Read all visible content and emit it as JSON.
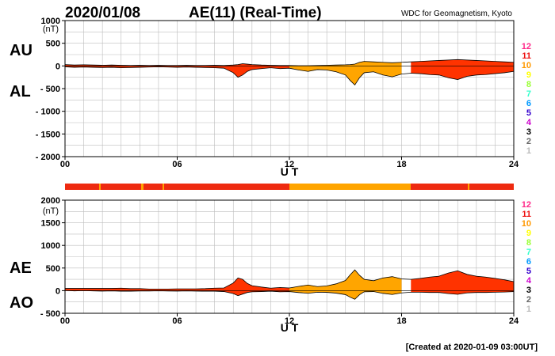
{
  "header": {
    "date": "2020/01/08",
    "title": "AE(11) (Real-Time)",
    "institution": "WDC for Geomagnetism, Kyoto"
  },
  "footer": {
    "created": "[Created at 2020-01-09 03:00UT]"
  },
  "colors": {
    "fill_red": "#ff3300",
    "fill_orange": "#ffa500",
    "outline": "#000000",
    "grid": "#bdbdbd"
  },
  "station_legend": [
    {
      "label": "12",
      "color": "#ff2a8a"
    },
    {
      "label": "11",
      "color": "#ee1111"
    },
    {
      "label": "10",
      "color": "#ff9900"
    },
    {
      "label": "9",
      "color": "#ffff00"
    },
    {
      "label": "8",
      "color": "#99ff33"
    },
    {
      "label": "7",
      "color": "#33ffcc"
    },
    {
      "label": "6",
      "color": "#0099ff"
    },
    {
      "label": "5",
      "color": "#3300cc"
    },
    {
      "label": "4",
      "color": "#cc00cc"
    },
    {
      "label": "3",
      "color": "#000000"
    },
    {
      "label": "2",
      "color": "#666666"
    },
    {
      "label": "1",
      "color": "#bbbbbb"
    }
  ],
  "chart_data": [
    {
      "type": "area",
      "panel": "AU/AL",
      "left_labels": [
        "AU",
        "AL"
      ],
      "unit_label": "(nT)",
      "xlabel": "U T",
      "xlim": [
        0,
        24
      ],
      "ylim": [
        -2000,
        1000
      ],
      "x_ticks": [
        0,
        6,
        12,
        18,
        24
      ],
      "x_tick_labels": [
        "00",
        "06",
        "12",
        "18",
        "24"
      ],
      "y_ticks": [
        1000,
        500,
        0,
        -500,
        -1000,
        -1500,
        -2000
      ],
      "y_tick_labels": [
        "1000",
        "500",
        "0",
        "- 500",
        "- 1000",
        "- 1500",
        "- 2000"
      ],
      "x": [
        0,
        0.5,
        1,
        1.5,
        2,
        2.5,
        3,
        3.5,
        4,
        4.5,
        5,
        5.5,
        6,
        6.5,
        7,
        7.5,
        8,
        8.5,
        9,
        9.25,
        9.5,
        9.75,
        10,
        10.5,
        11,
        11.5,
        12,
        12.5,
        13,
        13.5,
        14,
        14.5,
        15,
        15.25,
        15.5,
        15.75,
        16,
        16.5,
        17,
        17.5,
        18,
        18.5,
        19,
        19.5,
        20,
        20.5,
        21,
        21.5,
        22,
        22.5,
        23,
        23.5,
        24
      ],
      "series": [
        {
          "name": "AU",
          "values": [
            30,
            20,
            25,
            20,
            15,
            20,
            15,
            10,
            15,
            10,
            15,
            10,
            10,
            15,
            10,
            10,
            15,
            10,
            20,
            30,
            50,
            40,
            30,
            20,
            15,
            10,
            10,
            5,
            5,
            10,
            15,
            20,
            25,
            30,
            40,
            80,
            100,
            90,
            80,
            70,
            80,
            90,
            100,
            110,
            120,
            130,
            140,
            130,
            120,
            110,
            100,
            90,
            80
          ]
        },
        {
          "name": "AL",
          "values": [
            -20,
            -30,
            -25,
            -30,
            -35,
            -30,
            -40,
            -35,
            -30,
            -25,
            -20,
            -25,
            -30,
            -25,
            -30,
            -35,
            -40,
            -50,
            -150,
            -250,
            -200,
            -120,
            -80,
            -60,
            -40,
            -60,
            -50,
            -90,
            -120,
            -80,
            -90,
            -130,
            -200,
            -320,
            -420,
            -260,
            -150,
            -130,
            -200,
            -240,
            -180,
            -160,
            -170,
            -190,
            -200,
            -260,
            -300,
            -230,
            -200,
            -190,
            -170,
            -150,
            -120
          ]
        }
      ]
    },
    {
      "type": "area",
      "panel": "AE/AO",
      "left_labels": [
        "AE",
        "AO"
      ],
      "unit_label": "(nT)",
      "xlabel": "U T",
      "xlim": [
        0,
        24
      ],
      "ylim": [
        -500,
        2000
      ],
      "x_ticks": [
        0,
        6,
        12,
        18,
        24
      ],
      "x_tick_labels": [
        "00",
        "06",
        "12",
        "18",
        "24"
      ],
      "y_ticks": [
        2000,
        1500,
        1000,
        500,
        0,
        -500
      ],
      "y_tick_labels": [
        "2000",
        "1500",
        "1000",
        "500",
        "0",
        "- 500"
      ],
      "x": [
        0,
        0.5,
        1,
        1.5,
        2,
        2.5,
        3,
        3.5,
        4,
        4.5,
        5,
        5.5,
        6,
        6.5,
        7,
        7.5,
        8,
        8.5,
        9,
        9.25,
        9.5,
        9.75,
        10,
        10.5,
        11,
        11.5,
        12,
        12.5,
        13,
        13.5,
        14,
        14.5,
        15,
        15.25,
        15.5,
        15.75,
        16,
        16.5,
        17,
        17.5,
        18,
        18.5,
        19,
        19.5,
        20,
        20.5,
        21,
        21.5,
        22,
        22.5,
        23,
        23.5,
        24
      ],
      "series": [
        {
          "name": "AE",
          "values": [
            50,
            50,
            50,
            50,
            50,
            50,
            55,
            45,
            45,
            35,
            35,
            35,
            40,
            40,
            40,
            45,
            55,
            60,
            170,
            280,
            250,
            160,
            110,
            80,
            55,
            70,
            60,
            95,
            125,
            90,
            105,
            150,
            225,
            350,
            460,
            340,
            250,
            220,
            280,
            310,
            260,
            250,
            270,
            300,
            320,
            390,
            440,
            360,
            320,
            300,
            270,
            240,
            200
          ]
        },
        {
          "name": "AO",
          "values": [
            5,
            -5,
            0,
            -5,
            -10,
            -5,
            -12,
            -12,
            -8,
            -8,
            -3,
            -8,
            -10,
            -5,
            -10,
            -12,
            -12,
            -20,
            -65,
            -110,
            -75,
            -40,
            -25,
            -20,
            -12,
            -25,
            -20,
            -42,
            -58,
            -35,
            -38,
            -55,
            -88,
            -145,
            -190,
            -90,
            -25,
            -20,
            -60,
            -85,
            -50,
            -35,
            -35,
            -40,
            -40,
            -65,
            -80,
            -50,
            -40,
            -40,
            -35,
            -30,
            -20
          ]
        }
      ]
    }
  ]
}
